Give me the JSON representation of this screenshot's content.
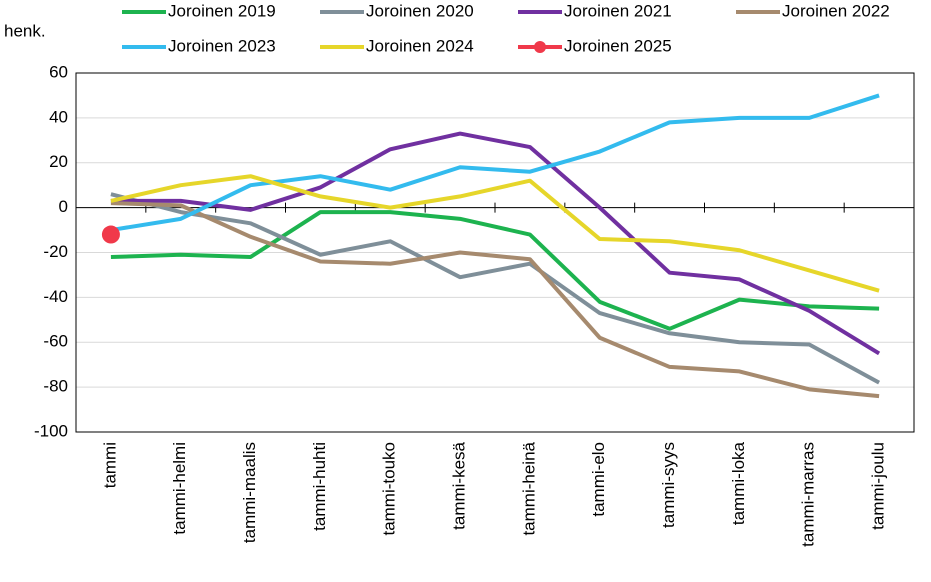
{
  "chart_data": {
    "type": "line",
    "y_label": "henk.",
    "categories": [
      "tammi",
      "tammi-helmi",
      "tammi-maalis",
      "tammi-huhti",
      "tammi-touko",
      "tammi-kesä",
      "tammi-heinä",
      "tammi-elo",
      "tammi-syys",
      "tammi-loka",
      "tammi-marras",
      "tammi-joulu"
    ],
    "series": [
      {
        "name": "Joroinen 2019",
        "color": "#1db34f",
        "values": [
          -22,
          -21,
          -22,
          -2,
          -2,
          -5,
          -12,
          -42,
          -54,
          -41,
          -44,
          -45
        ]
      },
      {
        "name": "Joroinen 2020",
        "color": "#7f8f99",
        "values": [
          6,
          -2,
          -7,
          -21,
          -15,
          -31,
          -25,
          -47,
          -56,
          -60,
          -61,
          -78
        ]
      },
      {
        "name": "Joroinen 2021",
        "color": "#7030a0",
        "values": [
          3,
          3,
          -1,
          9,
          26,
          33,
          27,
          0,
          -29,
          -32,
          -46,
          -65
        ]
      },
      {
        "name": "Joroinen 2022",
        "color": "#a68a6e",
        "values": [
          2,
          1,
          -13,
          -24,
          -25,
          -20,
          -23,
          -58,
          -71,
          -73,
          -81,
          -84
        ]
      },
      {
        "name": "Joroinen 2023",
        "color": "#33bbee",
        "values": [
          -10,
          -5,
          10,
          14,
          8,
          18,
          16,
          25,
          38,
          40,
          40,
          50
        ]
      },
      {
        "name": "Joroinen 2024",
        "color": "#e6d62a",
        "values": [
          3,
          10,
          14,
          5,
          0,
          5,
          12,
          -14,
          -15,
          -19,
          -28,
          -37
        ]
      },
      {
        "name": "Joroinen 2025",
        "color": "#f0394a",
        "marker": "circle",
        "values": [
          -12,
          null,
          null,
          null,
          null,
          null,
          null,
          null,
          null,
          null,
          null,
          null
        ]
      }
    ],
    "ylim": [
      -100,
      60
    ],
    "yticks": [
      -100,
      -80,
      -60,
      -40,
      -20,
      0,
      20,
      40,
      60
    ],
    "grid": true
  }
}
